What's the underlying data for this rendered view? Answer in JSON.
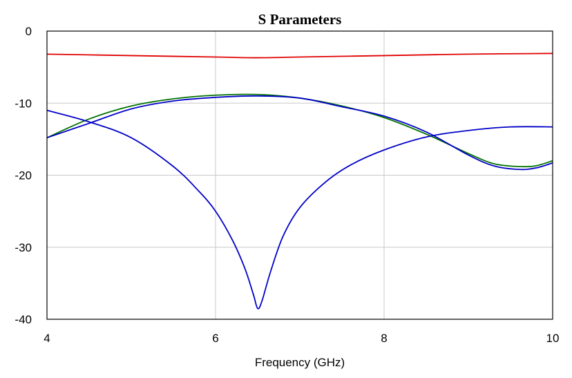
{
  "chart_data": {
    "type": "line",
    "title": "S Parameters",
    "xlabel": "Frequency (GHz)",
    "ylabel": "",
    "xlim": [
      4,
      10
    ],
    "ylim": [
      -40,
      0
    ],
    "xticks": [
      4,
      6,
      8,
      10
    ],
    "yticks": [
      0,
      -10,
      -20,
      -30,
      -40
    ],
    "xtick_labels": [
      "4",
      "6",
      "8",
      "10"
    ],
    "ytick_labels": [
      "0",
      "-10",
      "-20",
      "-30",
      "-40"
    ],
    "grid": true,
    "legend": "none",
    "series": [
      {
        "color": "#e00000",
        "x": [
          4.0,
          5.0,
          6.0,
          6.5,
          7.0,
          8.0,
          9.0,
          10.0
        ],
        "y": [
          -3.2,
          -3.4,
          -3.6,
          -3.7,
          -3.6,
          -3.4,
          -3.2,
          -3.1
        ]
      },
      {
        "color": "#007000",
        "x": [
          4.0,
          4.5,
          5.0,
          5.5,
          6.0,
          6.5,
          7.0,
          7.5,
          8.0,
          8.5,
          9.0,
          9.3,
          9.6,
          9.8,
          10.0
        ],
        "y": [
          -14.8,
          -12.2,
          -10.4,
          -9.4,
          -8.9,
          -8.8,
          -9.3,
          -10.4,
          -12.0,
          -14.3,
          -17.0,
          -18.4,
          -18.8,
          -18.7,
          -18.0
        ]
      },
      {
        "color": "#0000c8",
        "x": [
          4.0,
          4.5,
          5.0,
          5.5,
          6.0,
          6.5,
          7.0,
          7.5,
          8.0,
          8.5,
          9.0,
          9.3,
          9.6,
          9.8,
          10.0
        ],
        "y": [
          -14.8,
          -12.8,
          -10.8,
          -9.7,
          -9.2,
          -9.0,
          -9.3,
          -10.5,
          -11.8,
          -14.0,
          -17.2,
          -18.7,
          -19.2,
          -19.0,
          -18.3
        ]
      },
      {
        "color": "#0000c8",
        "x": [
          4.0,
          4.5,
          5.0,
          5.5,
          5.8,
          6.0,
          6.2,
          6.35,
          6.45,
          6.5,
          6.55,
          6.65,
          6.8,
          7.0,
          7.3,
          7.6,
          8.0,
          8.5,
          9.0,
          9.5,
          10.0
        ],
        "y": [
          -11.0,
          -12.6,
          -14.8,
          -18.8,
          -22.2,
          -25.0,
          -29.0,
          -33.0,
          -36.6,
          -38.5,
          -37.5,
          -33.5,
          -28.5,
          -24.5,
          -21.0,
          -18.6,
          -16.5,
          -14.7,
          -13.8,
          -13.3,
          -13.3
        ]
      }
    ]
  }
}
